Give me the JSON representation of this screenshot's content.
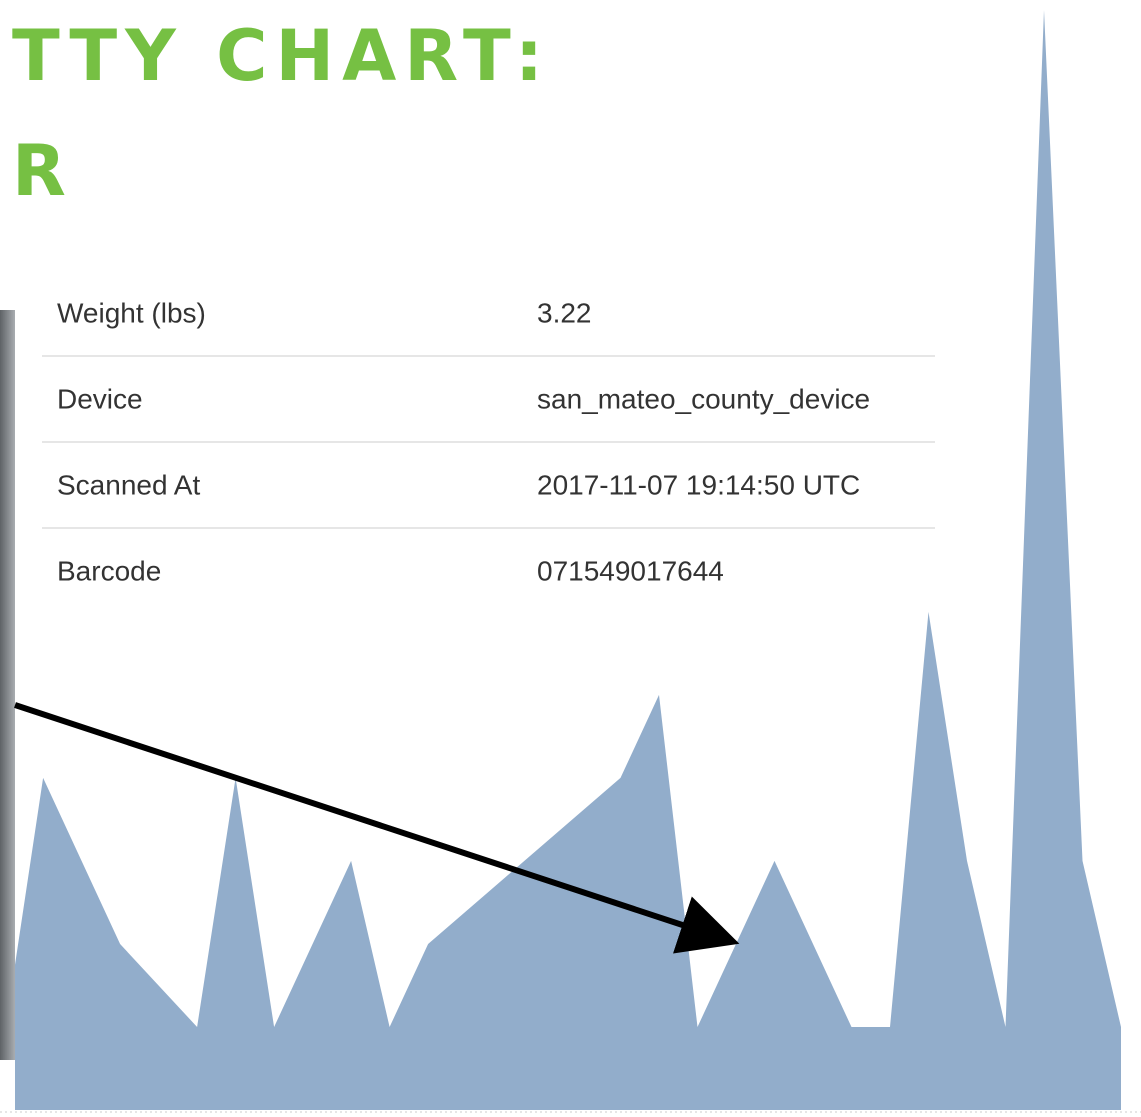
{
  "header": {
    "title_lines": [
      "TTY CHART:",
      "R"
    ]
  },
  "table": {
    "rows": [
      [
        "Weight (lbs)",
        "3.22"
      ],
      [
        "Device",
        "san_mateo_county_device"
      ],
      [
        "Scanned At",
        "2017-11-07 19:14:50 UTC"
      ],
      [
        "Barcode",
        "071549017644"
      ]
    ]
  },
  "chart_data": {
    "type": "area",
    "color": "#92adcb",
    "x": [
      -0.73,
      0,
      2,
      4,
      5,
      6,
      8,
      9,
      10,
      15,
      16,
      17,
      19,
      21,
      22,
      23,
      24,
      25,
      26,
      27,
      28
    ],
    "values": [
      1.75,
      4,
      2,
      1,
      4,
      1,
      3,
      1,
      2,
      4,
      5,
      1,
      3,
      1,
      1,
      6,
      3,
      1,
      13.25,
      3,
      1
    ],
    "xlim": [
      -1.12,
      28.52
    ],
    "ylim": [
      0,
      13.37
    ]
  }
}
